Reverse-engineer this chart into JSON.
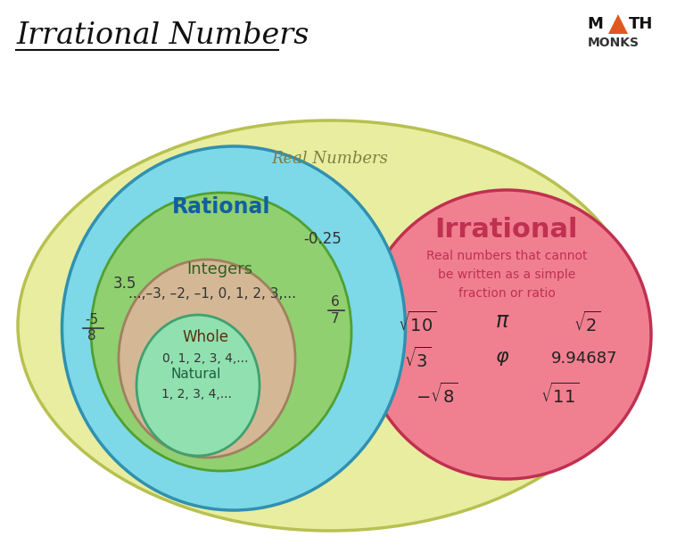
{
  "title": "Irrational Numbers",
  "background_color": "#ffffff",
  "real_numbers_color": "#e8eda0",
  "real_numbers_border": "#b8c050",
  "rational_color": "#7dd8e8",
  "rational_border": "#3090b0",
  "integers_color": "#90d070",
  "integers_border": "#50a030",
  "whole_color": "#d4b896",
  "whole_border": "#a08060",
  "natural_color": "#90e0b0",
  "natural_border": "#40a070",
  "irrational_color": "#f08090",
  "irrational_border": "#c03050",
  "real_label": "Real Numbers",
  "real_label_color": "#808040",
  "rational_label": "Rational",
  "rational_label_color": "#1060a0",
  "integers_label": "Integers",
  "integers_label_color": "#306020",
  "integers_examples": "...,–3, –2, –1, 0, 1, 2, 3,...",
  "whole_label": "Whole",
  "whole_examples": "0, 1, 2, 3, 4,...",
  "natural_label": "Natural",
  "natural_examples": "1, 2, 3, 4,...",
  "irrational_label": "Irrational",
  "irrational_desc": "Real numbers that cannot\nbe written as a simple\nfraction or ratio",
  "irrational_desc_color": "#c03050",
  "annotation_35": "3.5",
  "annotation_025": "-0.25",
  "logo_monks": "MONKS"
}
